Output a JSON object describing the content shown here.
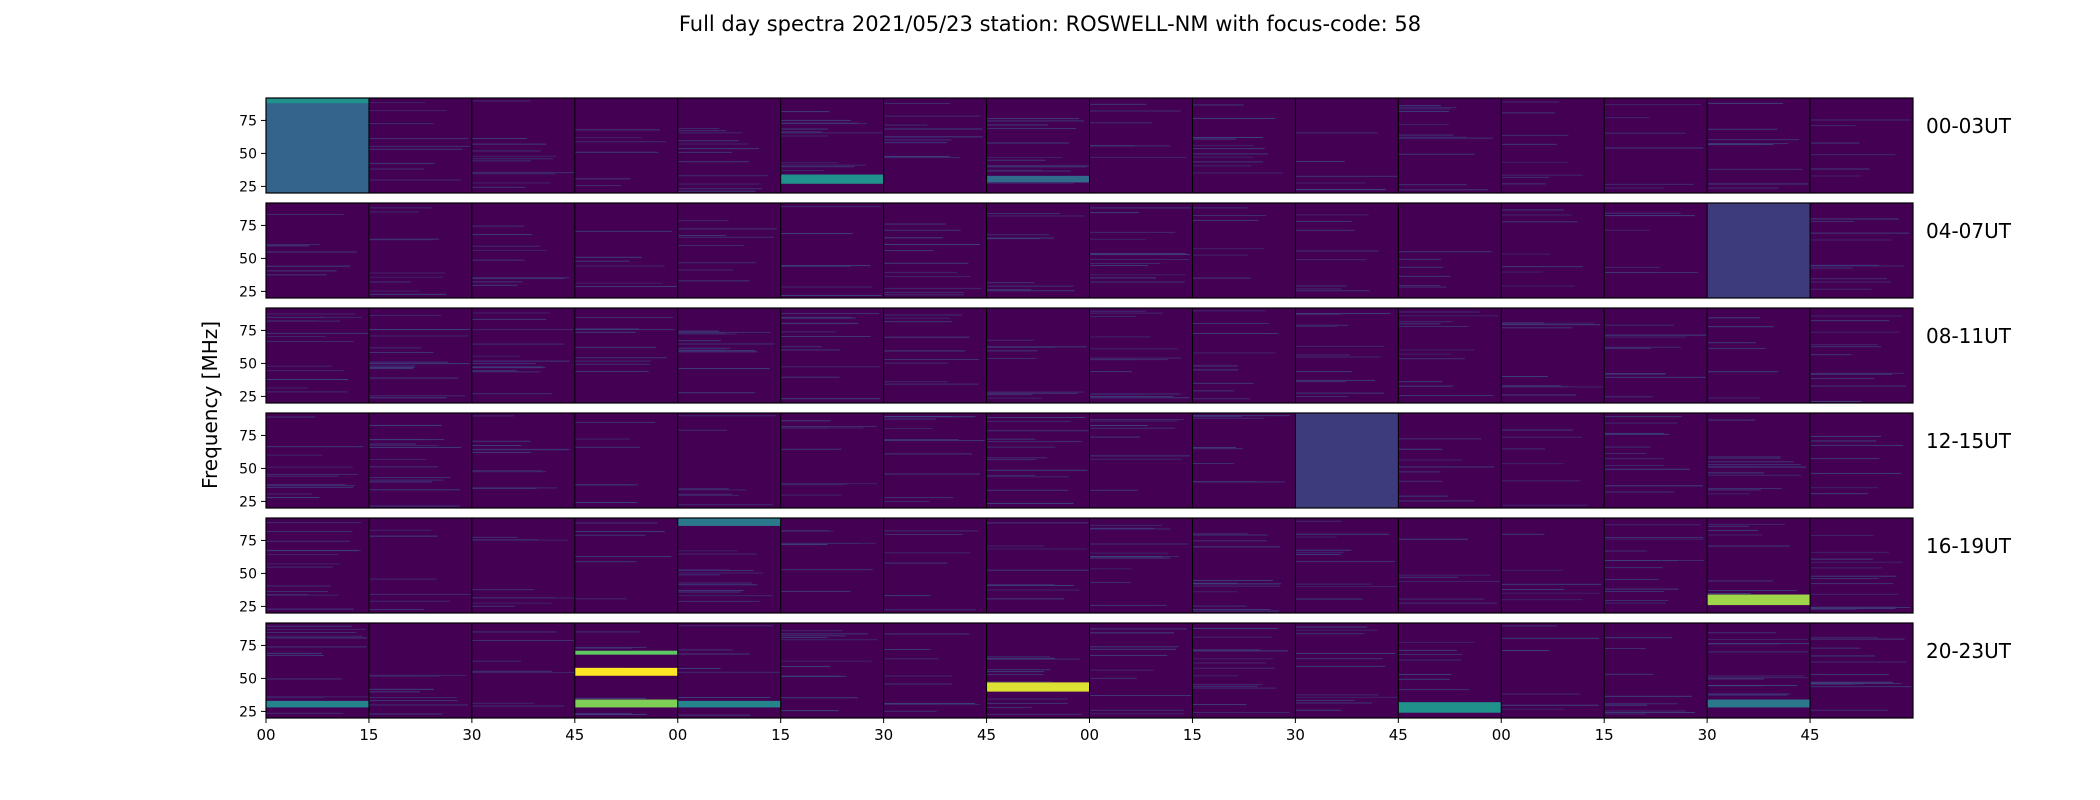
{
  "title": "Full day spectra 2021/05/23 station: ROSWELL-NM with focus-code: 58",
  "ylabel": "Frequency [MHz]",
  "colormap": [
    "#440154",
    "#3b528b",
    "#21918c",
    "#5ec962",
    "#fde725"
  ],
  "chart_data": {
    "type": "heatmap",
    "title": "Full day spectra 2021/05/23 station: ROSWELL-NM with focus-code: 58",
    "ylabel": "Frequency [MHz]",
    "yticks": [
      25,
      50,
      75
    ],
    "ylim": [
      20,
      92
    ],
    "xticks": [
      "00",
      "15",
      "30",
      "45",
      "00",
      "15",
      "30",
      "45",
      "00",
      "15",
      "30",
      "45",
      "00",
      "15",
      "30",
      "45"
    ],
    "rows": [
      {
        "label": "00-03UT"
      },
      {
        "label": "04-07UT"
      },
      {
        "label": "08-11UT"
      },
      {
        "label": "12-15UT"
      },
      {
        "label": "16-19UT"
      },
      {
        "label": "20-23UT"
      }
    ],
    "panels_per_row": 16,
    "features": [
      {
        "row": 0,
        "panel": 0,
        "fmin": 20,
        "fmax": 92,
        "level": 0.32
      },
      {
        "row": 0,
        "panel": 0,
        "fmin": 88,
        "fmax": 92,
        "level": 0.5
      },
      {
        "row": 0,
        "panel": 5,
        "fmin": 27,
        "fmax": 34,
        "level": 0.5
      },
      {
        "row": 0,
        "panel": 7,
        "fmin": 28,
        "fmax": 33,
        "level": 0.35
      },
      {
        "row": 1,
        "panel": 14,
        "fmin": 20,
        "fmax": 92,
        "level": 0.18
      },
      {
        "row": 3,
        "panel": 10,
        "fmin": 20,
        "fmax": 92,
        "level": 0.18
      },
      {
        "row": 4,
        "panel": 4,
        "fmin": 86,
        "fmax": 92,
        "level": 0.4
      },
      {
        "row": 4,
        "panel": 14,
        "fmin": 26,
        "fmax": 34,
        "level": 0.85
      },
      {
        "row": 5,
        "panel": 3,
        "fmin": 52,
        "fmax": 58,
        "level": 1.0
      },
      {
        "row": 5,
        "panel": 3,
        "fmin": 28,
        "fmax": 34,
        "level": 0.8
      },
      {
        "row": 5,
        "panel": 3,
        "fmin": 68,
        "fmax": 71,
        "level": 0.75
      },
      {
        "row": 5,
        "panel": 7,
        "fmin": 40,
        "fmax": 47,
        "level": 0.95
      },
      {
        "row": 5,
        "panel": 0,
        "fmin": 28,
        "fmax": 33,
        "level": 0.45
      },
      {
        "row": 5,
        "panel": 4,
        "fmin": 28,
        "fmax": 33,
        "level": 0.45
      },
      {
        "row": 5,
        "panel": 11,
        "fmin": 24,
        "fmax": 32,
        "level": 0.5
      },
      {
        "row": 5,
        "panel": 14,
        "fmin": 28,
        "fmax": 34,
        "level": 0.4
      }
    ]
  }
}
